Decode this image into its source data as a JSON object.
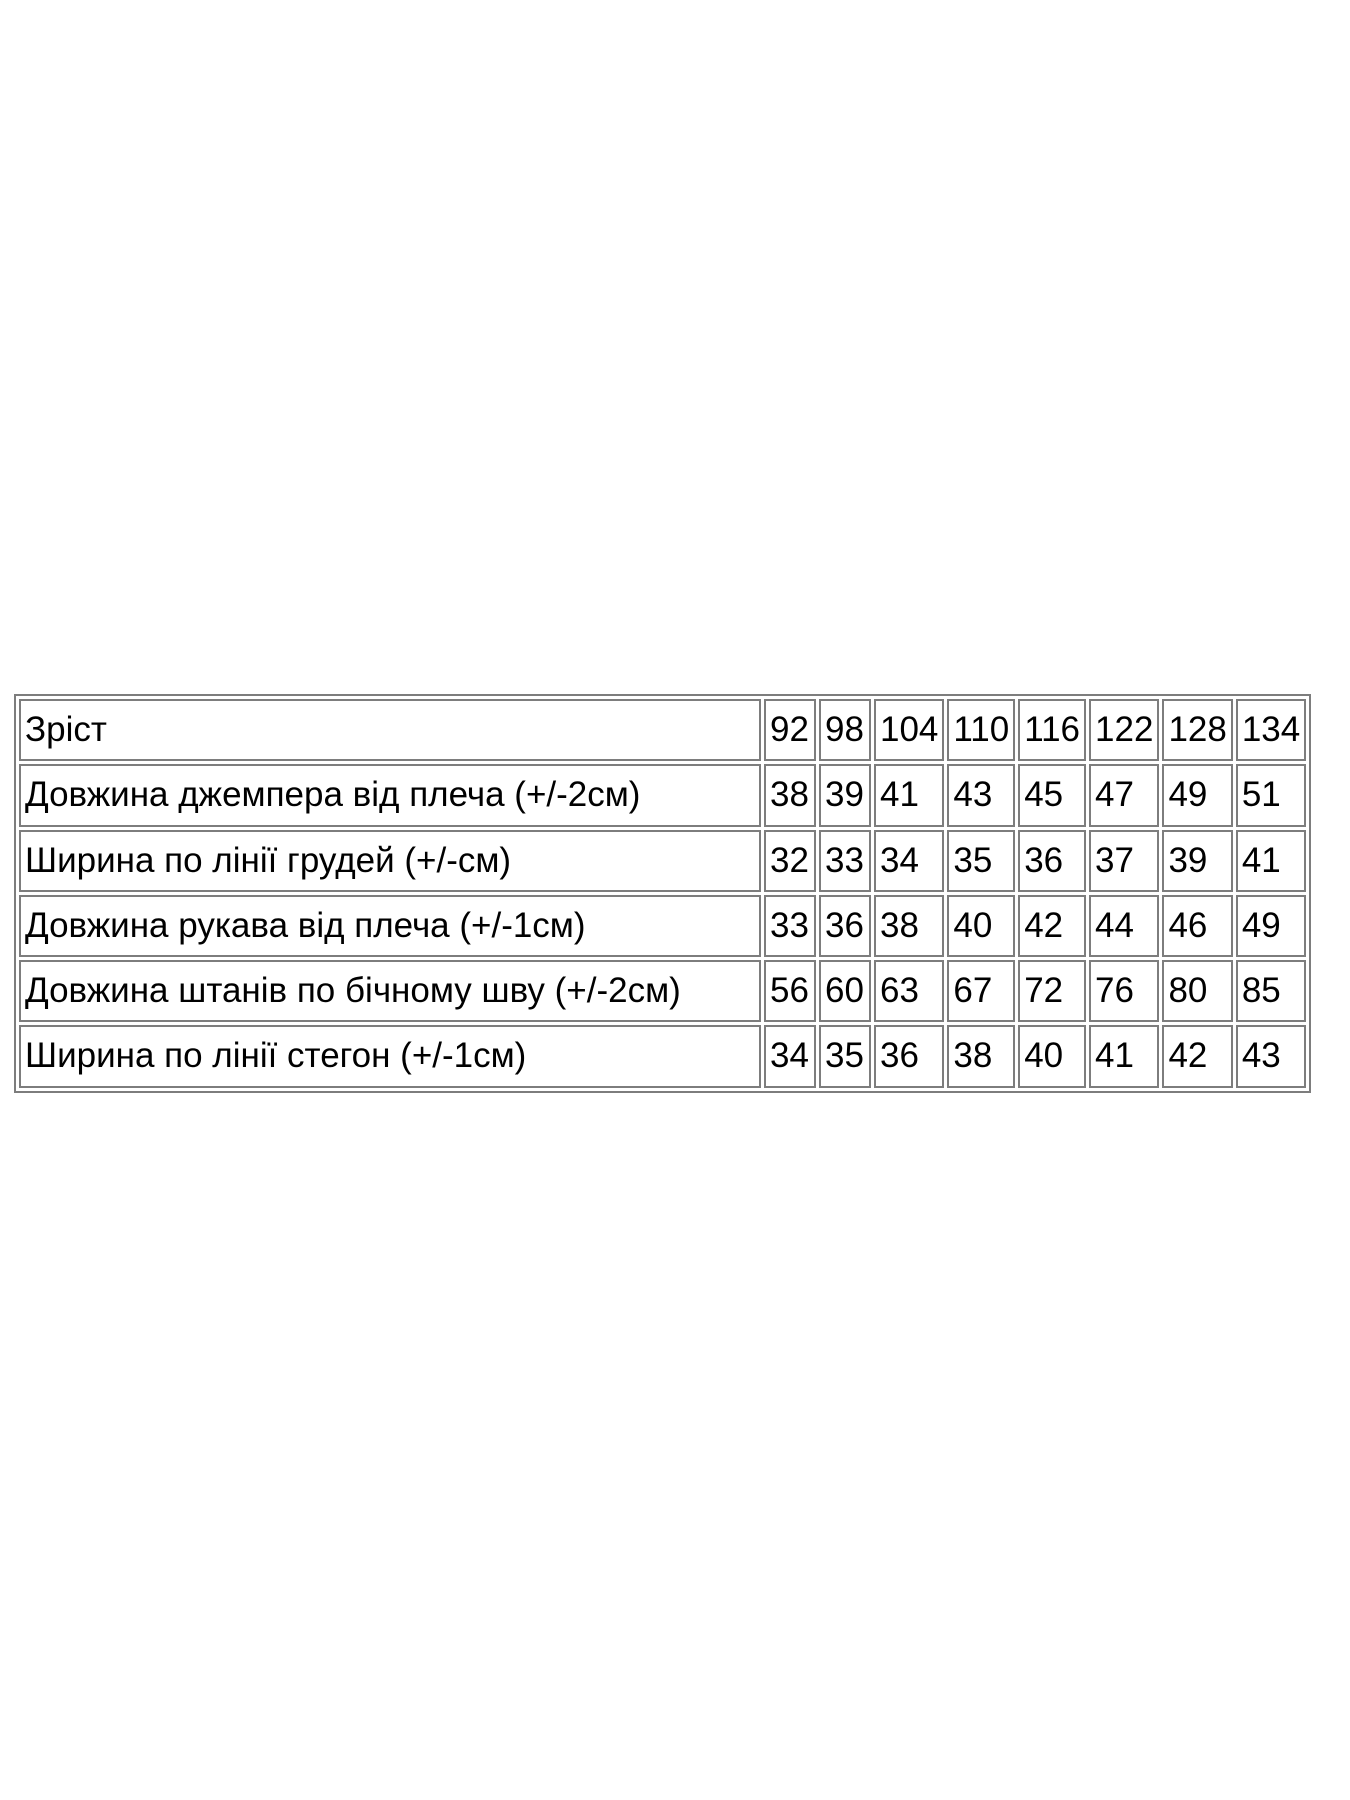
{
  "page": {
    "background_color": "#ffffff",
    "text_color": "#000000",
    "border_color": "#7d7d7d"
  },
  "table": {
    "description": "Таблиця розмірів (size chart)",
    "rows": [
      {
        "label": "Зріст",
        "values": [
          "92",
          "98",
          "104",
          "110",
          "116",
          "122",
          "128",
          "134"
        ]
      },
      {
        "label": "Довжина джемпера від плеча (+/-2см)",
        "values": [
          "38",
          "39",
          "41",
          "43",
          "45",
          "47",
          "49",
          "51"
        ]
      },
      {
        "label": "Ширина по лінії грудей (+/-см)",
        "values": [
          "32",
          "33",
          "34",
          "35",
          "36",
          "37",
          "39",
          "41"
        ]
      },
      {
        "label": "Довжина рукава від плеча (+/-1см)",
        "values": [
          "33",
          "36",
          "38",
          "40",
          "42",
          "44",
          "46",
          "49"
        ]
      },
      {
        "label": "Довжина штанів по бічному шву (+/-2см)",
        "values": [
          "56",
          "60",
          "63",
          "67",
          "72",
          "76",
          "80",
          "85"
        ]
      },
      {
        "label": "Ширина по лінії стегон (+/-1см)",
        "values": [
          "34",
          "35",
          "36",
          "38",
          "40",
          "41",
          "42",
          "43"
        ]
      }
    ]
  }
}
